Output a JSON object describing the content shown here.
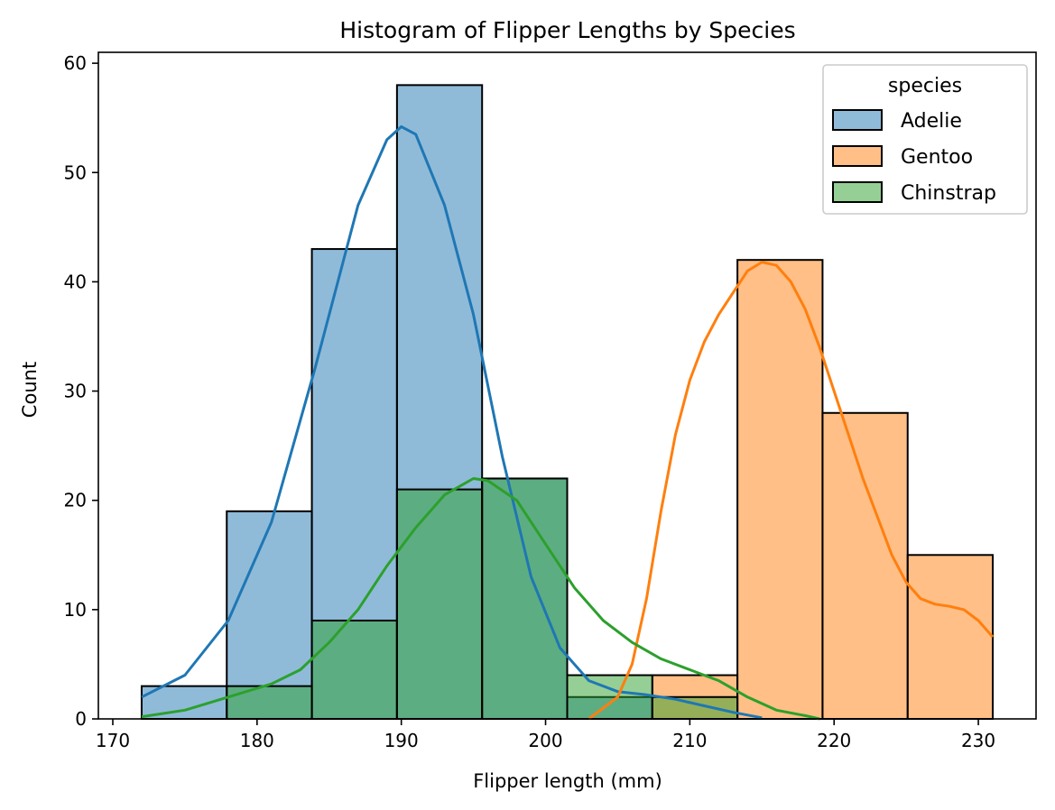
{
  "chart_data": {
    "type": "bar",
    "title": "Histogram of Flipper Lengths by Species",
    "xlabel": "Flipper length (mm)",
    "ylabel": "Count",
    "xlim": [
      169,
      234
    ],
    "ylim": [
      0,
      61
    ],
    "xticks": [
      170,
      180,
      190,
      200,
      210,
      220,
      230
    ],
    "yticks": [
      0,
      10,
      20,
      30,
      40,
      50,
      60
    ],
    "bin_edges": [
      172,
      177.9,
      183.8,
      189.7,
      195.6,
      201.5,
      207.4,
      213.3,
      219.2,
      225.1,
      231
    ],
    "grid": false,
    "legend": {
      "title": "species",
      "placement": "top-right"
    },
    "series": [
      {
        "name": "Adelie",
        "color": "#1f77b4",
        "counts": [
          3,
          19,
          43,
          58,
          22,
          2,
          0,
          0,
          0,
          0
        ],
        "kde": [
          [
            172,
            2
          ],
          [
            175,
            4
          ],
          [
            178,
            9
          ],
          [
            181,
            18
          ],
          [
            184,
            32
          ],
          [
            187,
            47
          ],
          [
            189,
            53
          ],
          [
            190,
            54.2
          ],
          [
            191,
            53.5
          ],
          [
            193,
            47
          ],
          [
            195,
            37
          ],
          [
            197,
            24
          ],
          [
            199,
            13
          ],
          [
            201,
            6.5
          ],
          [
            203,
            3.5
          ],
          [
            205,
            2.5
          ],
          [
            207,
            2.2
          ],
          [
            209,
            1.8
          ],
          [
            211,
            1.2
          ],
          [
            213,
            0.6
          ],
          [
            215,
            0.1
          ]
        ]
      },
      {
        "name": "Gentoo",
        "color": "#ff7f0e",
        "counts": [
          0,
          0,
          0,
          0,
          0,
          0,
          4,
          42,
          28,
          15
        ],
        "kde": [
          [
            203,
            0
          ],
          [
            205,
            2
          ],
          [
            206,
            5
          ],
          [
            207,
            11
          ],
          [
            208,
            19
          ],
          [
            209,
            26
          ],
          [
            210,
            31
          ],
          [
            211,
            34.5
          ],
          [
            212,
            37
          ],
          [
            213,
            39
          ],
          [
            214,
            41
          ],
          [
            215,
            41.8
          ],
          [
            216,
            41.5
          ],
          [
            217,
            40
          ],
          [
            218,
            37.5
          ],
          [
            219,
            34
          ],
          [
            220,
            30
          ],
          [
            221,
            26
          ],
          [
            222,
            22
          ],
          [
            223,
            18.5
          ],
          [
            224,
            15
          ],
          [
            225,
            12.5
          ],
          [
            226,
            11
          ],
          [
            227,
            10.5
          ],
          [
            228,
            10.3
          ],
          [
            229,
            10
          ],
          [
            230,
            9
          ],
          [
            231,
            7.5
          ]
        ]
      },
      {
        "name": "Chinstrap",
        "color": "#2ca02c",
        "counts": [
          0,
          3,
          9,
          21,
          22,
          4,
          2,
          0,
          0,
          0
        ],
        "kde": [
          [
            172,
            0.2
          ],
          [
            175,
            0.8
          ],
          [
            178,
            2
          ],
          [
            181,
            3.2
          ],
          [
            183,
            4.5
          ],
          [
            185,
            7
          ],
          [
            187,
            10
          ],
          [
            189,
            14
          ],
          [
            191,
            17.5
          ],
          [
            193,
            20.5
          ],
          [
            195,
            22
          ],
          [
            196,
            21.8
          ],
          [
            198,
            20
          ],
          [
            200,
            16
          ],
          [
            202,
            12
          ],
          [
            204,
            9
          ],
          [
            206,
            7
          ],
          [
            208,
            5.5
          ],
          [
            210,
            4.5
          ],
          [
            212,
            3.5
          ],
          [
            214,
            2
          ],
          [
            216,
            0.8
          ],
          [
            218,
            0.3
          ],
          [
            219,
            0
          ]
        ]
      }
    ]
  }
}
